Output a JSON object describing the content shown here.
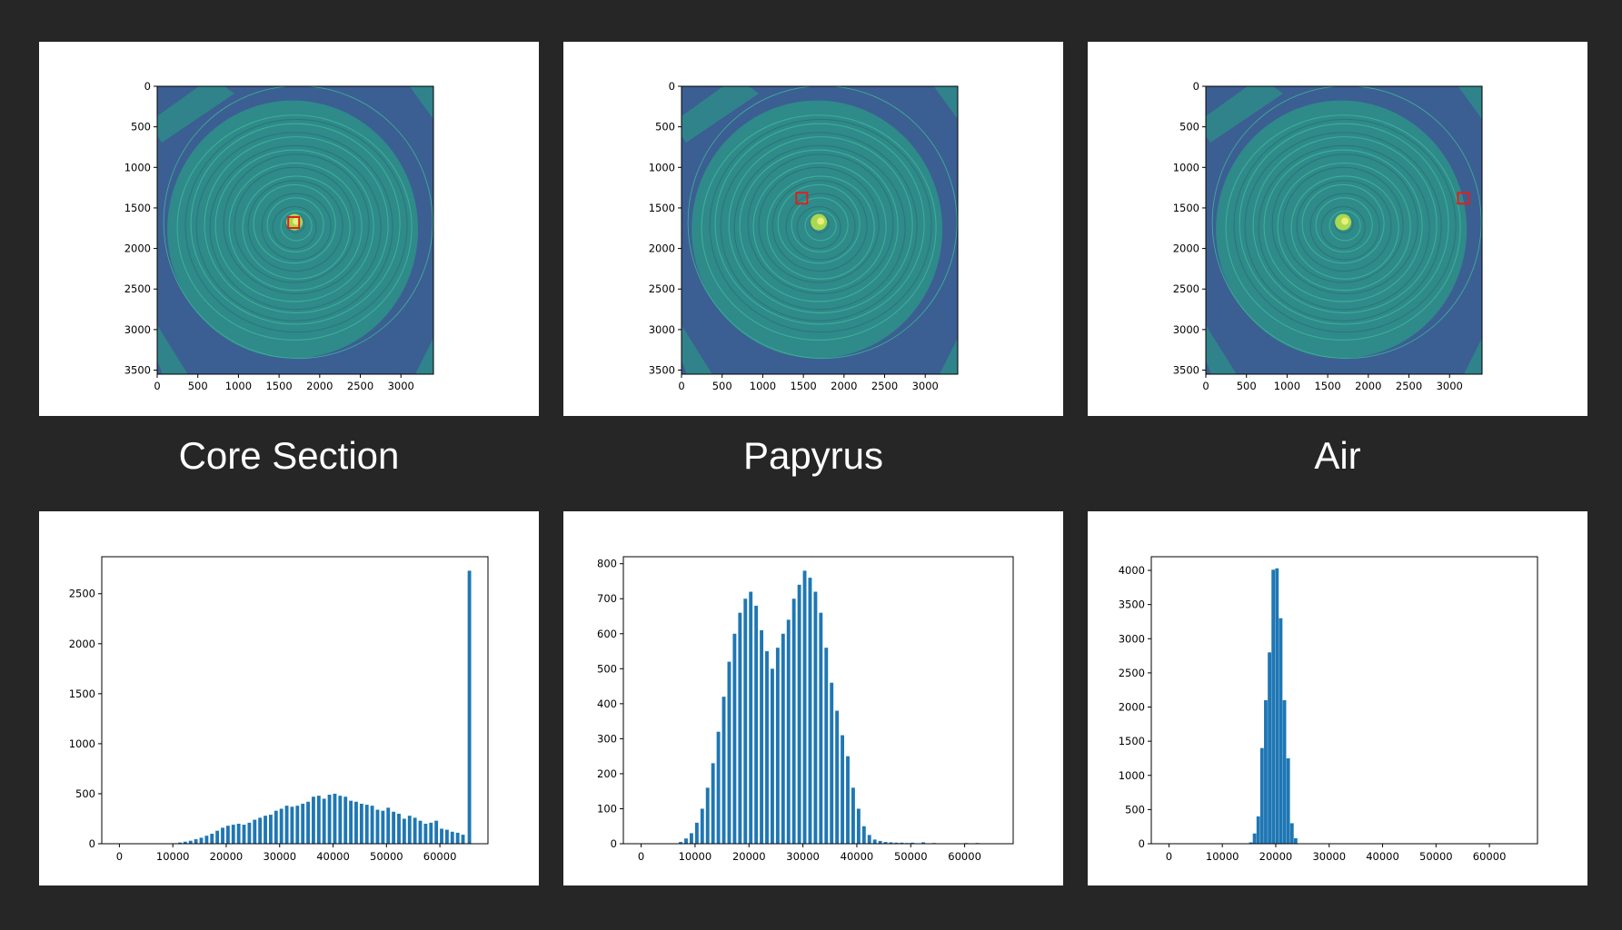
{
  "colors": {
    "background": "#262626",
    "bar": "#1f77b4",
    "scan_bg": "#3b5f92",
    "tissue": "#2f8a8a",
    "tissue_bright": "#3fb39a",
    "hot": "#b8e04a",
    "roi": "#e0201e"
  },
  "captions": [
    "Core Section",
    "Papyrus",
    "Air"
  ],
  "scans": [
    {
      "label": "Core Section",
      "roi_center": [
        1680,
        1680
      ],
      "xticks": [
        "0",
        "500",
        "1000",
        "1500",
        "2000",
        "2500",
        "3000"
      ],
      "yticks": [
        "0",
        "500",
        "1000",
        "1500",
        "2000",
        "2500",
        "3000",
        "3500"
      ]
    },
    {
      "label": "Papyrus",
      "roi_center": [
        1480,
        1380
      ],
      "xticks": [
        "0",
        "500",
        "1000",
        "1500",
        "2000",
        "2500",
        "3000"
      ],
      "yticks": [
        "0",
        "500",
        "1000",
        "1500",
        "2000",
        "2500",
        "3000",
        "3500"
      ]
    },
    {
      "label": "Air",
      "roi_center": [
        3170,
        1380
      ],
      "xticks": [
        "0",
        "500",
        "1000",
        "1500",
        "2000",
        "2500",
        "3000"
      ],
      "yticks": [
        "0",
        "500",
        "1000",
        "1500",
        "2000",
        "2500",
        "3000",
        "3500"
      ]
    }
  ],
  "chart_data": [
    {
      "type": "bar",
      "xlim": [
        -3300,
        69000
      ],
      "ylim": [
        0,
        2870
      ],
      "xticks": [
        "0",
        "10000",
        "20000",
        "30000",
        "40000",
        "50000",
        "60000"
      ],
      "yticks": [
        "0",
        "500",
        "1000",
        "1500",
        "2000",
        "2500"
      ],
      "bin_width": 655,
      "x": [
        0,
        10000,
        11000,
        12000,
        13000,
        14000,
        15000,
        16000,
        17000,
        18000,
        19000,
        20000,
        21000,
        22000,
        23000,
        24000,
        25000,
        26000,
        27000,
        28000,
        29000,
        30000,
        31000,
        32000,
        33000,
        34000,
        35000,
        36000,
        37000,
        38000,
        39000,
        40000,
        41000,
        42000,
        43000,
        44000,
        45000,
        46000,
        47000,
        48000,
        49000,
        50000,
        51000,
        52000,
        53000,
        54000,
        55000,
        56000,
        57000,
        58000,
        59000,
        60000,
        61000,
        62000,
        63000,
        64000,
        65200
      ],
      "values": [
        0,
        5,
        12,
        20,
        30,
        45,
        60,
        80,
        100,
        130,
        160,
        180,
        190,
        200,
        190,
        210,
        240,
        260,
        280,
        290,
        330,
        350,
        380,
        370,
        380,
        400,
        420,
        470,
        480,
        450,
        490,
        500,
        480,
        470,
        430,
        420,
        400,
        390,
        380,
        340,
        330,
        360,
        320,
        300,
        250,
        280,
        260,
        230,
        200,
        210,
        230,
        150,
        140,
        120,
        110,
        90,
        2730
      ]
    },
    {
      "type": "bar",
      "xlim": [
        -3300,
        69000
      ],
      "ylim": [
        0,
        820
      ],
      "xticks": [
        "0",
        "10000",
        "20000",
        "30000",
        "40000",
        "50000",
        "60000"
      ],
      "yticks": [
        "0",
        "100",
        "200",
        "300",
        "400",
        "500",
        "600",
        "700",
        "800"
      ],
      "bin_width": 655,
      "x": [
        7000,
        8000,
        9000,
        10000,
        11000,
        12000,
        13000,
        14000,
        15000,
        16000,
        17000,
        18000,
        19000,
        20000,
        21000,
        22000,
        23000,
        24000,
        25000,
        26000,
        27000,
        28000,
        29000,
        30000,
        31000,
        32000,
        33000,
        34000,
        35000,
        36000,
        37000,
        38000,
        39000,
        40000,
        41000,
        42000,
        43000,
        44000,
        45000,
        46000,
        47000,
        48000,
        49000,
        50000,
        52000,
        54000,
        60000,
        62000
      ],
      "values": [
        5,
        15,
        30,
        60,
        100,
        160,
        230,
        320,
        420,
        520,
        600,
        660,
        700,
        720,
        680,
        610,
        550,
        500,
        560,
        600,
        640,
        700,
        740,
        780,
        760,
        720,
        660,
        560,
        460,
        380,
        310,
        250,
        160,
        100,
        50,
        25,
        12,
        8,
        5,
        4,
        3,
        3,
        2,
        3,
        4,
        2,
        2,
        2
      ]
    },
    {
      "type": "bar",
      "xlim": [
        -3300,
        69000
      ],
      "ylim": [
        0,
        4200
      ],
      "xticks": [
        "0",
        "10000",
        "20000",
        "30000",
        "40000",
        "50000",
        "60000"
      ],
      "yticks": [
        "0",
        "500",
        "1000",
        "1500",
        "2000",
        "2500",
        "3000",
        "3500",
        "4000"
      ],
      "bin_width": 655,
      "x": [
        15000,
        15700,
        16400,
        17100,
        17800,
        18500,
        19200,
        19900,
        20600,
        21300,
        22000,
        22700,
        23400
      ],
      "values": [
        20,
        150,
        400,
        1400,
        2100,
        2800,
        4010,
        4030,
        3300,
        2100,
        1250,
        300,
        80
      ]
    }
  ]
}
